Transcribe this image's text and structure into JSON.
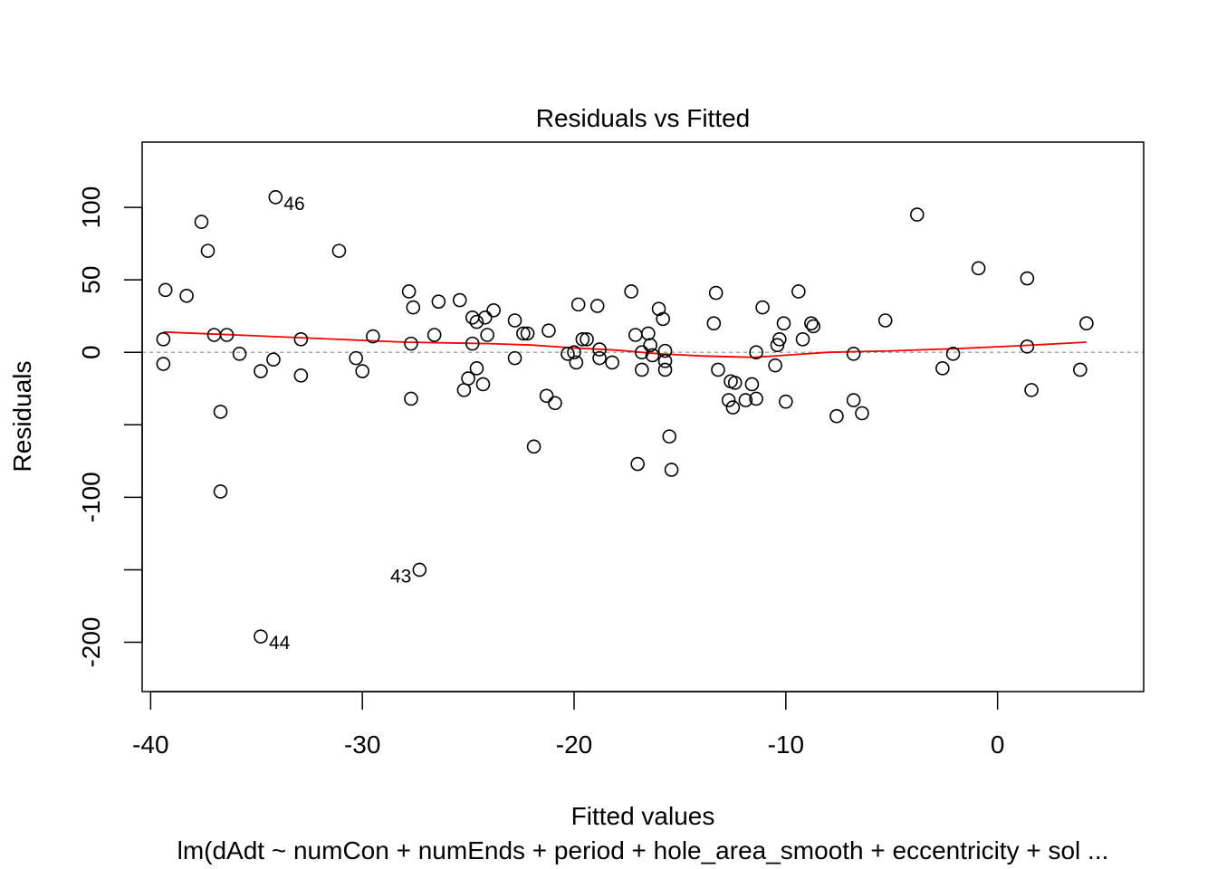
{
  "chart_data": {
    "type": "scatter",
    "title": "Residuals vs Fitted",
    "xlabel": "Fitted values",
    "ylabel": "Residuals",
    "caption": "lm(dAdt ~ numCon + numEnds + period + hole_area_smooth + eccentricity + sol ...",
    "xlim": [
      -40.4,
      6.9
    ],
    "ylim": [
      -234,
      145
    ],
    "x_ticks": [
      -40,
      -30,
      -20,
      -10,
      0
    ],
    "x_tick_labels": [
      "-40",
      "-30",
      "-20",
      "-10",
      "0"
    ],
    "y_ticks": [
      -200,
      -150,
      -100,
      -50,
      0,
      50,
      100
    ],
    "y_tick_labels": [
      "-200",
      "",
      "-100",
      "",
      "0",
      "50",
      "100"
    ],
    "reference_line_y": 0,
    "points": [
      {
        "x": -39.4,
        "y": 9
      },
      {
        "x": -39.4,
        "y": -8
      },
      {
        "x": -39.3,
        "y": 43
      },
      {
        "x": -38.3,
        "y": 39
      },
      {
        "x": -37.6,
        "y": 90
      },
      {
        "x": -37.3,
        "y": 70
      },
      {
        "x": -37.0,
        "y": 12
      },
      {
        "x": -36.7,
        "y": -41
      },
      {
        "x": -36.7,
        "y": -96
      },
      {
        "x": -36.4,
        "y": 12
      },
      {
        "x": -35.8,
        "y": -1
      },
      {
        "x": -34.8,
        "y": -13
      },
      {
        "x": -34.8,
        "y": -196
      },
      {
        "x": -34.2,
        "y": -5
      },
      {
        "x": -34.1,
        "y": 107
      },
      {
        "x": -32.9,
        "y": 9
      },
      {
        "x": -32.9,
        "y": -16
      },
      {
        "x": -31.1,
        "y": 70
      },
      {
        "x": -30.3,
        "y": -4
      },
      {
        "x": -30.0,
        "y": -13
      },
      {
        "x": -29.5,
        "y": 11
      },
      {
        "x": -27.8,
        "y": 42
      },
      {
        "x": -27.7,
        "y": -32
      },
      {
        "x": -27.7,
        "y": 6
      },
      {
        "x": -27.6,
        "y": 31
      },
      {
        "x": -27.3,
        "y": -150
      },
      {
        "x": -26.6,
        "y": 12
      },
      {
        "x": -26.4,
        "y": 35
      },
      {
        "x": -25.4,
        "y": 36
      },
      {
        "x": -25.2,
        "y": -26
      },
      {
        "x": -25.0,
        "y": -18
      },
      {
        "x": -24.8,
        "y": 6
      },
      {
        "x": -24.8,
        "y": 24
      },
      {
        "x": -24.6,
        "y": -11
      },
      {
        "x": -24.6,
        "y": 21
      },
      {
        "x": -24.3,
        "y": -22
      },
      {
        "x": -24.2,
        "y": 24
      },
      {
        "x": -24.1,
        "y": 12
      },
      {
        "x": -23.8,
        "y": 29
      },
      {
        "x": -22.8,
        "y": -4
      },
      {
        "x": -22.8,
        "y": 22
      },
      {
        "x": -22.4,
        "y": 13
      },
      {
        "x": -22.2,
        "y": 13
      },
      {
        "x": -21.9,
        "y": -65
      },
      {
        "x": -21.3,
        "y": -30
      },
      {
        "x": -21.2,
        "y": 15
      },
      {
        "x": -20.9,
        "y": -35
      },
      {
        "x": -20.3,
        "y": -1
      },
      {
        "x": -20.0,
        "y": 0
      },
      {
        "x": -19.9,
        "y": -7
      },
      {
        "x": -19.8,
        "y": 33
      },
      {
        "x": -19.6,
        "y": 9
      },
      {
        "x": -19.4,
        "y": 9
      },
      {
        "x": -18.9,
        "y": 32
      },
      {
        "x": -18.8,
        "y": 2
      },
      {
        "x": -18.8,
        "y": -4
      },
      {
        "x": -18.2,
        "y": -7
      },
      {
        "x": -17.3,
        "y": 42
      },
      {
        "x": -17.1,
        "y": 12
      },
      {
        "x": -17.0,
        "y": -77
      },
      {
        "x": -16.8,
        "y": 0
      },
      {
        "x": -16.8,
        "y": -12
      },
      {
        "x": -16.5,
        "y": 13
      },
      {
        "x": -16.4,
        "y": 5
      },
      {
        "x": -16.3,
        "y": -2
      },
      {
        "x": -16.0,
        "y": 30
      },
      {
        "x": -15.8,
        "y": 23
      },
      {
        "x": -15.7,
        "y": -12
      },
      {
        "x": -15.7,
        "y": 1
      },
      {
        "x": -15.7,
        "y": -6
      },
      {
        "x": -15.5,
        "y": -58
      },
      {
        "x": -15.4,
        "y": -81
      },
      {
        "x": -13.4,
        "y": 20
      },
      {
        "x": -13.3,
        "y": 41
      },
      {
        "x": -13.2,
        "y": -12
      },
      {
        "x": -12.7,
        "y": -33
      },
      {
        "x": -12.6,
        "y": -20
      },
      {
        "x": -12.5,
        "y": -38
      },
      {
        "x": -12.4,
        "y": -21
      },
      {
        "x": -11.9,
        "y": -33
      },
      {
        "x": -11.6,
        "y": -22
      },
      {
        "x": -11.4,
        "y": -32
      },
      {
        "x": -11.4,
        "y": 0
      },
      {
        "x": -11.1,
        "y": 31
      },
      {
        "x": -10.5,
        "y": -9
      },
      {
        "x": -10.4,
        "y": 5
      },
      {
        "x": -10.3,
        "y": 9
      },
      {
        "x": -10.1,
        "y": 20
      },
      {
        "x": -10.0,
        "y": -34
      },
      {
        "x": -9.4,
        "y": 42
      },
      {
        "x": -9.2,
        "y": 9
      },
      {
        "x": -8.8,
        "y": 20
      },
      {
        "x": -8.7,
        "y": 18
      },
      {
        "x": -7.6,
        "y": -44
      },
      {
        "x": -6.8,
        "y": -1
      },
      {
        "x": -6.8,
        "y": -33
      },
      {
        "x": -6.4,
        "y": -42
      },
      {
        "x": -5.3,
        "y": 22
      },
      {
        "x": -3.8,
        "y": 95
      },
      {
        "x": -2.6,
        "y": -11
      },
      {
        "x": -2.1,
        "y": -1
      },
      {
        "x": -0.9,
        "y": 58
      },
      {
        "x": 1.4,
        "y": 51
      },
      {
        "x": 1.4,
        "y": 4
      },
      {
        "x": 1.6,
        "y": -26
      },
      {
        "x": 3.9,
        "y": -12
      },
      {
        "x": 4.2,
        "y": 20
      }
    ],
    "smoother": [
      {
        "x": -39.4,
        "y": 14
      },
      {
        "x": -36,
        "y": 12
      },
      {
        "x": -32,
        "y": 9.5
      },
      {
        "x": -28,
        "y": 7
      },
      {
        "x": -24,
        "y": 6
      },
      {
        "x": -22,
        "y": 5
      },
      {
        "x": -20,
        "y": 3
      },
      {
        "x": -18,
        "y": 1.5
      },
      {
        "x": -16,
        "y": -1
      },
      {
        "x": -14,
        "y": -2.5
      },
      {
        "x": -11.5,
        "y": -3.5
      },
      {
        "x": -10,
        "y": -2
      },
      {
        "x": -8,
        "y": 0
      },
      {
        "x": -5,
        "y": 1
      },
      {
        "x": -2,
        "y": 2.5
      },
      {
        "x": 1,
        "y": 4.5
      },
      {
        "x": 4.2,
        "y": 7
      }
    ],
    "labeled_points": [
      {
        "text": "46",
        "x": -34.1,
        "y": 107,
        "side": "right"
      },
      {
        "text": "43",
        "x": -27.3,
        "y": -150,
        "side": "left"
      },
      {
        "text": "44",
        "x": -34.8,
        "y": -196,
        "side": "right"
      }
    ],
    "colors": {
      "points": "#000000",
      "smoother": "#ff0000",
      "reference_line": "#a6a6a6"
    }
  }
}
